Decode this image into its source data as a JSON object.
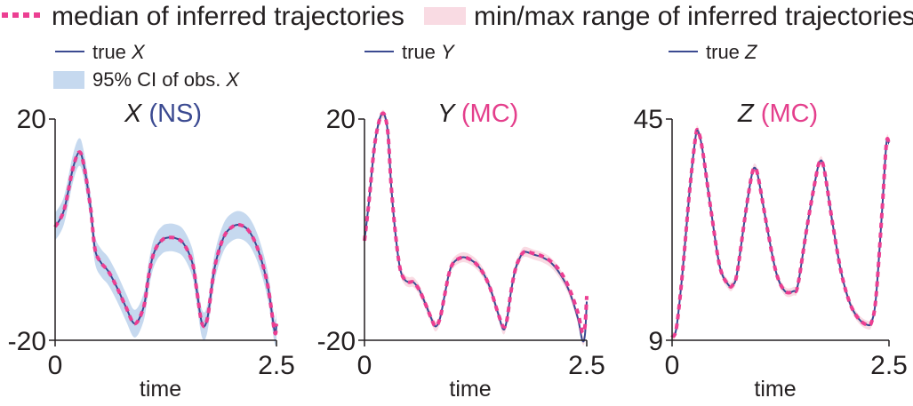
{
  "legend_top": {
    "median_label": "median of inferred trajectories",
    "range_label": "min/max range of inferred trajectories"
  },
  "colors": {
    "true_line": "#3b4a91",
    "median": "#ec3f92",
    "range_fill": "#f9dbe3",
    "ci_fill": "#c6d9ef",
    "ns_text": "#3b4a91",
    "mc_text": "#e43f8c",
    "axis": "#231f20"
  },
  "chart_data": [
    {
      "type": "line",
      "title_var": "X",
      "title_tag": "(NS)",
      "tag_color": "ns",
      "legend_true": "true",
      "legend_true_var": "X",
      "legend_ci": "95% CI of obs.",
      "legend_ci_var": "X",
      "xlabel": "time",
      "xlim": [
        0,
        2.5
      ],
      "ylim": [
        -20,
        20
      ],
      "xtick_labels": [
        "0",
        "2.5"
      ],
      "ytick_labels": [
        "20",
        "-20"
      ],
      "ci_halfwidth": 2.5,
      "true": [
        [
          0,
          0.5
        ],
        [
          0.1,
          3.5
        ],
        [
          0.2,
          11
        ],
        [
          0.27,
          14
        ],
        [
          0.32,
          12
        ],
        [
          0.4,
          4
        ],
        [
          0.45,
          -3.5
        ],
        [
          0.52,
          -6
        ],
        [
          0.6,
          -7.5
        ],
        [
          0.7,
          -10.5
        ],
        [
          0.8,
          -14
        ],
        [
          0.9,
          -17
        ],
        [
          1.0,
          -14
        ],
        [
          1.05,
          -9
        ],
        [
          1.1,
          -5
        ],
        [
          1.15,
          -3
        ],
        [
          1.2,
          -2
        ],
        [
          1.25,
          -1.5
        ],
        [
          1.35,
          -1.5
        ],
        [
          1.45,
          -2.5
        ],
        [
          1.55,
          -6
        ],
        [
          1.6,
          -11
        ],
        [
          1.66,
          -17
        ],
        [
          1.72,
          -16
        ],
        [
          1.8,
          -7
        ],
        [
          1.9,
          -1.5
        ],
        [
          2.0,
          0.5
        ],
        [
          2.1,
          0.8
        ],
        [
          2.2,
          -0.5
        ],
        [
          2.3,
          -4
        ],
        [
          2.4,
          -10
        ],
        [
          2.48,
          -18.5
        ],
        [
          2.5,
          -17
        ]
      ],
      "median": [
        [
          0,
          0.5
        ],
        [
          0.1,
          3.5
        ],
        [
          0.2,
          11
        ],
        [
          0.27,
          14
        ],
        [
          0.32,
          12
        ],
        [
          0.4,
          4
        ],
        [
          0.45,
          -3.5
        ],
        [
          0.52,
          -6
        ],
        [
          0.6,
          -7.5
        ],
        [
          0.7,
          -10.5
        ],
        [
          0.8,
          -14
        ],
        [
          0.9,
          -17
        ],
        [
          1.0,
          -14
        ],
        [
          1.05,
          -9
        ],
        [
          1.1,
          -5
        ],
        [
          1.15,
          -3
        ],
        [
          1.2,
          -2
        ],
        [
          1.25,
          -1.5
        ],
        [
          1.35,
          -1.5
        ],
        [
          1.45,
          -2.5
        ],
        [
          1.55,
          -6
        ],
        [
          1.6,
          -11
        ],
        [
          1.66,
          -17
        ],
        [
          1.72,
          -16
        ],
        [
          1.8,
          -7
        ],
        [
          1.9,
          -1.5
        ],
        [
          2.0,
          0.5
        ],
        [
          2.1,
          0.8
        ],
        [
          2.2,
          -0.5
        ],
        [
          2.3,
          -4
        ],
        [
          2.4,
          -10
        ],
        [
          2.48,
          -18.5
        ],
        [
          2.5,
          -17
        ]
      ]
    },
    {
      "type": "line",
      "title_var": "Y",
      "title_tag": "(MC)",
      "tag_color": "mc",
      "legend_true": "true",
      "legend_true_var": "Y",
      "xlabel": "time",
      "xlim": [
        0,
        2.5
      ],
      "ylim": [
        -20,
        20
      ],
      "xtick_labels": [
        "0",
        "2.5"
      ],
      "ytick_labels": [
        "20",
        "-20"
      ],
      "range_halfwidth": 0.9,
      "true": [
        [
          0,
          -2
        ],
        [
          0.05,
          5
        ],
        [
          0.12,
          16
        ],
        [
          0.2,
          21
        ],
        [
          0.26,
          18
        ],
        [
          0.3,
          8
        ],
        [
          0.35,
          -1
        ],
        [
          0.4,
          -7
        ],
        [
          0.45,
          -9
        ],
        [
          0.5,
          -9.5
        ],
        [
          0.55,
          -9.5
        ],
        [
          0.62,
          -11
        ],
        [
          0.7,
          -14
        ],
        [
          0.75,
          -16
        ],
        [
          0.8,
          -17.5
        ],
        [
          0.85,
          -16
        ],
        [
          0.9,
          -12
        ],
        [
          0.95,
          -8
        ],
        [
          1.0,
          -6
        ],
        [
          1.1,
          -5
        ],
        [
          1.2,
          -5.5
        ],
        [
          1.3,
          -7
        ],
        [
          1.4,
          -10
        ],
        [
          1.5,
          -15
        ],
        [
          1.56,
          -18
        ],
        [
          1.6,
          -16.5
        ],
        [
          1.65,
          -11
        ],
        [
          1.7,
          -7
        ],
        [
          1.75,
          -5
        ],
        [
          1.8,
          -4
        ],
        [
          1.9,
          -4.5
        ],
        [
          2.0,
          -5
        ],
        [
          2.1,
          -6
        ],
        [
          2.2,
          -8
        ],
        [
          2.3,
          -11
        ],
        [
          2.4,
          -16
        ],
        [
          2.45,
          -20
        ],
        [
          2.48,
          -19
        ],
        [
          2.5,
          -13
        ]
      ],
      "median": [
        [
          0,
          -2
        ],
        [
          0.05,
          5
        ],
        [
          0.12,
          16
        ],
        [
          0.2,
          21
        ],
        [
          0.26,
          18
        ],
        [
          0.3,
          8
        ],
        [
          0.35,
          -1
        ],
        [
          0.4,
          -7
        ],
        [
          0.45,
          -9
        ],
        [
          0.5,
          -9.5
        ],
        [
          0.55,
          -9.5
        ],
        [
          0.62,
          -11
        ],
        [
          0.7,
          -14
        ],
        [
          0.75,
          -16
        ],
        [
          0.8,
          -17.5
        ],
        [
          0.85,
          -16
        ],
        [
          0.9,
          -12
        ],
        [
          0.95,
          -8
        ],
        [
          1.0,
          -6
        ],
        [
          1.1,
          -5
        ],
        [
          1.2,
          -5.5
        ],
        [
          1.3,
          -7
        ],
        [
          1.4,
          -10
        ],
        [
          1.5,
          -15
        ],
        [
          1.56,
          -17.5
        ],
        [
          1.6,
          -16.5
        ],
        [
          1.65,
          -11
        ],
        [
          1.7,
          -7
        ],
        [
          1.75,
          -5
        ],
        [
          1.8,
          -4
        ],
        [
          1.9,
          -4.3
        ],
        [
          2.0,
          -4.8
        ],
        [
          2.1,
          -5.8
        ],
        [
          2.2,
          -7.5
        ],
        [
          2.3,
          -10.5
        ],
        [
          2.4,
          -15
        ],
        [
          2.45,
          -18.5
        ],
        [
          2.48,
          -17.5
        ],
        [
          2.5,
          -12
        ]
      ]
    },
    {
      "type": "line",
      "title_var": "Z",
      "title_tag": "(MC)",
      "tag_color": "mc",
      "legend_true": "true",
      "legend_true_var": "Z",
      "xlabel": "time",
      "xlim": [
        0,
        2.5
      ],
      "ylim": [
        9,
        45
      ],
      "xtick_labels": [
        "0",
        "2.5"
      ],
      "ytick_labels": [
        "45",
        "9"
      ],
      "range_halfwidth": 0.7,
      "true": [
        [
          0,
          9.5
        ],
        [
          0.05,
          11
        ],
        [
          0.12,
          20
        ],
        [
          0.2,
          33
        ],
        [
          0.27,
          42
        ],
        [
          0.3,
          43
        ],
        [
          0.35,
          40
        ],
        [
          0.45,
          30
        ],
        [
          0.55,
          21
        ],
        [
          0.65,
          18
        ],
        [
          0.7,
          18
        ],
        [
          0.75,
          20
        ],
        [
          0.85,
          30
        ],
        [
          0.92,
          36
        ],
        [
          0.96,
          37
        ],
        [
          1.0,
          35
        ],
        [
          1.1,
          27
        ],
        [
          1.2,
          20
        ],
        [
          1.3,
          17
        ],
        [
          1.4,
          17
        ],
        [
          1.45,
          18
        ],
        [
          1.55,
          27
        ],
        [
          1.65,
          35
        ],
        [
          1.7,
          38
        ],
        [
          1.75,
          37
        ],
        [
          1.85,
          28
        ],
        [
          1.95,
          20
        ],
        [
          2.05,
          15
        ],
        [
          2.15,
          12.5
        ],
        [
          2.25,
          11.5
        ],
        [
          2.3,
          12
        ],
        [
          2.35,
          16
        ],
        [
          2.42,
          30
        ],
        [
          2.47,
          41
        ],
        [
          2.5,
          41
        ]
      ],
      "median": [
        [
          0,
          9.5
        ],
        [
          0.05,
          11
        ],
        [
          0.12,
          20
        ],
        [
          0.2,
          33
        ],
        [
          0.27,
          42
        ],
        [
          0.3,
          43
        ],
        [
          0.35,
          40
        ],
        [
          0.45,
          30
        ],
        [
          0.55,
          21
        ],
        [
          0.65,
          18
        ],
        [
          0.7,
          18
        ],
        [
          0.75,
          20
        ],
        [
          0.85,
          30
        ],
        [
          0.92,
          36
        ],
        [
          0.96,
          37
        ],
        [
          1.0,
          35
        ],
        [
          1.1,
          27
        ],
        [
          1.2,
          20
        ],
        [
          1.3,
          17
        ],
        [
          1.4,
          17
        ],
        [
          1.45,
          18
        ],
        [
          1.55,
          27
        ],
        [
          1.65,
          35
        ],
        [
          1.7,
          38
        ],
        [
          1.75,
          37
        ],
        [
          1.85,
          28
        ],
        [
          1.95,
          20
        ],
        [
          2.05,
          15
        ],
        [
          2.15,
          12.5
        ],
        [
          2.25,
          11.5
        ],
        [
          2.3,
          12
        ],
        [
          2.35,
          16
        ],
        [
          2.42,
          30
        ],
        [
          2.47,
          41
        ],
        [
          2.5,
          41
        ]
      ]
    }
  ]
}
